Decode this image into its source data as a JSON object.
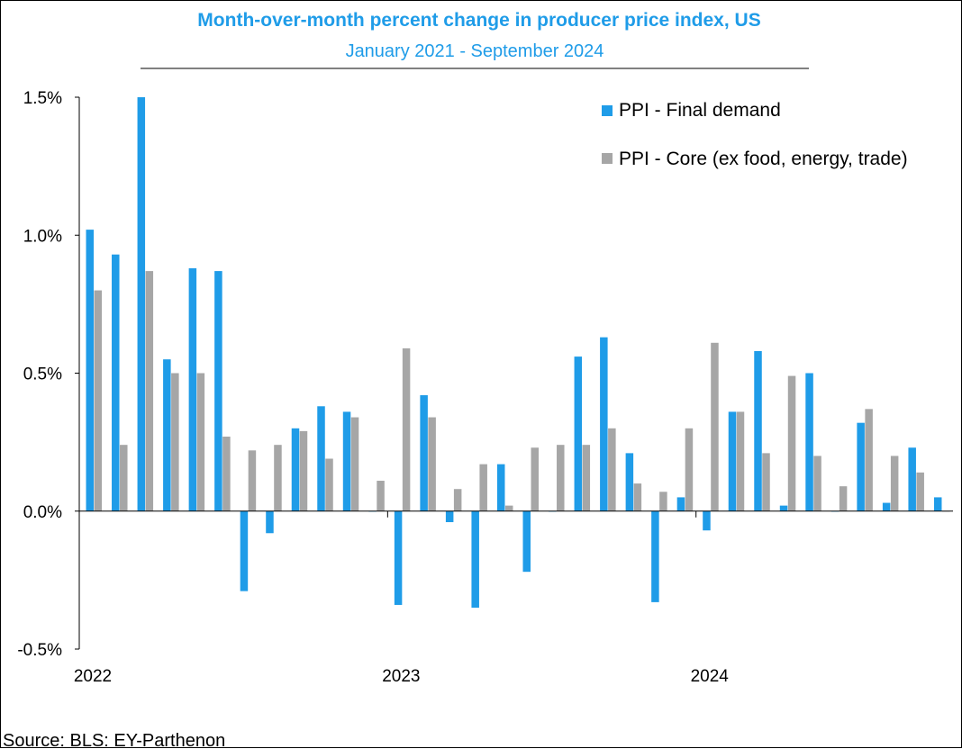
{
  "chart_data": {
    "type": "bar",
    "title": "Month-over-month percent change in producer price index, US",
    "subtitle": "January 2021 - September 2024",
    "source": "Source: BLS: EY-Parthenon",
    "y_ticks": [
      "1.5%",
      "1.0%",
      "0.5%",
      "0.0%",
      "-0.5%"
    ],
    "y_tick_values": [
      1.5,
      1.0,
      0.5,
      0.0,
      -0.5
    ],
    "ylim": [
      -0.5,
      1.5
    ],
    "x_tick_labels": [
      "2022",
      "2023",
      "2024"
    ],
    "x_tick_label_month_index": [
      0,
      12,
      24
    ],
    "x_tick_mark_month_index": [
      12,
      24
    ],
    "legend_position": "top-right",
    "colors": {
      "final_demand": "#1F9CE8",
      "core": "#A6A6A6",
      "title": "#1F9CE8"
    },
    "series": [
      {
        "name": "PPI - Final demand",
        "values": [
          1.02,
          0.93,
          1.5,
          0.55,
          0.88,
          0.87,
          -0.29,
          -0.08,
          0.3,
          0.38,
          0.36,
          0.0,
          -0.34,
          0.42,
          -0.04,
          -0.35,
          0.17,
          -0.22,
          0.0,
          0.56,
          0.63,
          0.21,
          -0.33,
          0.05,
          -0.07,
          0.36,
          0.58,
          0.02,
          0.5,
          0.0,
          0.32,
          0.03,
          0.23,
          0.05
        ]
      },
      {
        "name": "PPI - Core (ex food, energy, trade)",
        "values": [
          0.8,
          0.24,
          0.87,
          0.5,
          0.5,
          0.27,
          0.22,
          0.24,
          0.29,
          0.19,
          0.34,
          0.11,
          0.59,
          0.34,
          0.08,
          0.17,
          0.02,
          0.23,
          0.24,
          0.24,
          0.3,
          0.1,
          0.07,
          0.3,
          0.61,
          0.36,
          0.21,
          0.49,
          0.2,
          0.09,
          0.37,
          0.2,
          0.14,
          0.0
        ]
      }
    ]
  }
}
